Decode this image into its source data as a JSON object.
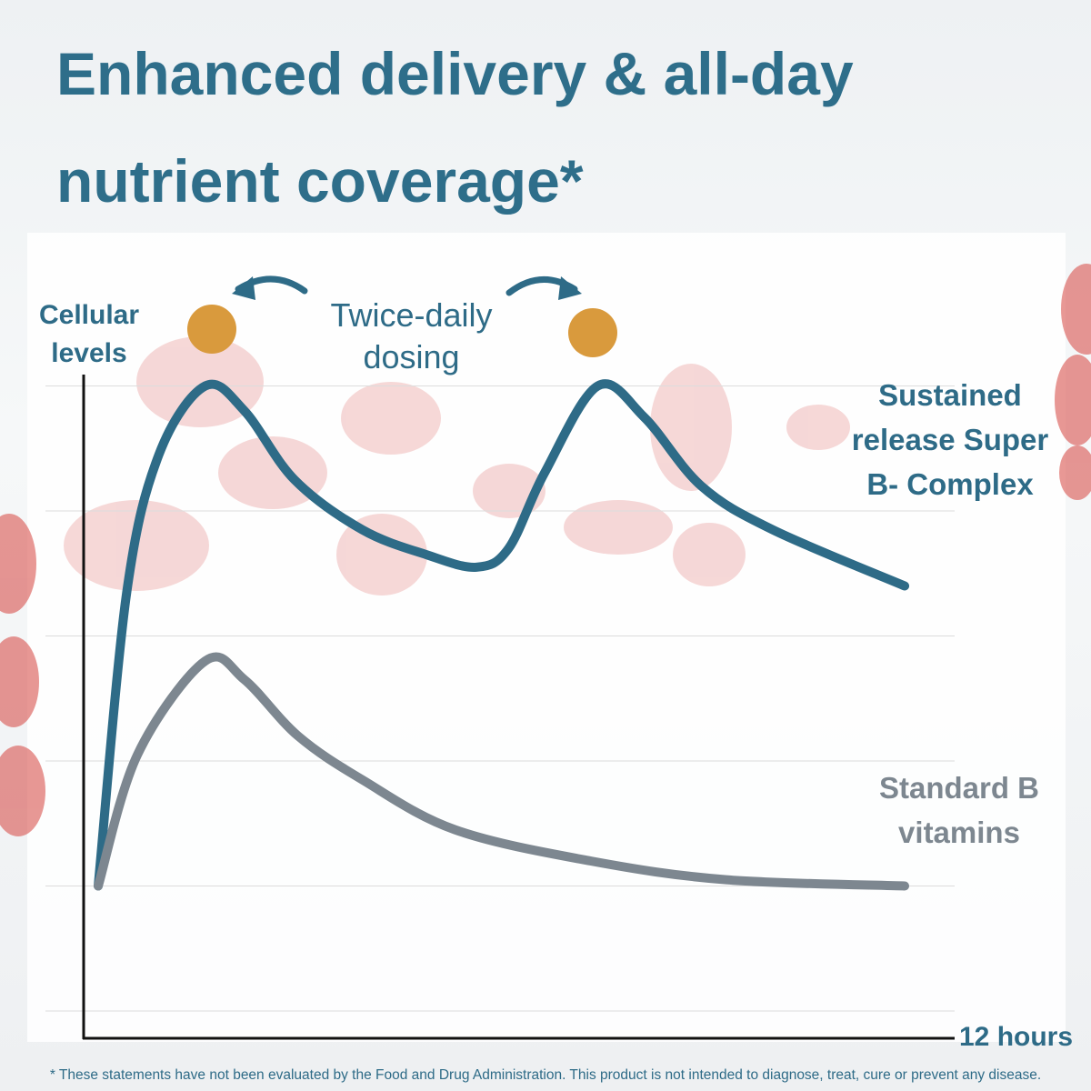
{
  "chart_data": {
    "type": "line",
    "title": "Enhanced delivery & all-day nutrient coverage*",
    "y_label": "Cellular levels",
    "x_label": "12 hours",
    "annotation": "Twice-daily dosing",
    "footnote": "* These statements have not been evaluated by the Food and Drug Administration. This product is not intended to diagnose, treat, cure or prevent any disease.",
    "xlim": [
      0,
      12
    ],
    "ylim": [
      -0.2,
      5.1
    ],
    "gridlines": [
      0,
      1,
      2,
      3,
      4,
      5
    ],
    "grid": true,
    "series": [
      {
        "name": "Sustained release Super B- Complex",
        "color": "#2e6b87",
        "x": [
          0,
          0.4,
          0.85,
          1.5,
          2.05,
          2.75,
          3.7,
          4.6,
          5.3,
          5.75,
          6.25,
          7.0,
          7.65,
          8.45,
          9.45,
          11.3
        ],
        "values": [
          1.0,
          3.35,
          4.45,
          5.0,
          4.8,
          4.25,
          3.85,
          3.65,
          3.55,
          3.7,
          4.3,
          5.0,
          4.75,
          4.2,
          3.85,
          3.4
        ]
      },
      {
        "name": "Standard B vitamins",
        "color": "#7d8790",
        "x": [
          0,
          0.55,
          1.5,
          2.05,
          2.8,
          3.7,
          5.0,
          6.9,
          8.8,
          11.3
        ],
        "values": [
          1.0,
          2.05,
          2.8,
          2.65,
          2.2,
          1.85,
          1.45,
          1.2,
          1.05,
          1.0
        ]
      }
    ]
  }
}
